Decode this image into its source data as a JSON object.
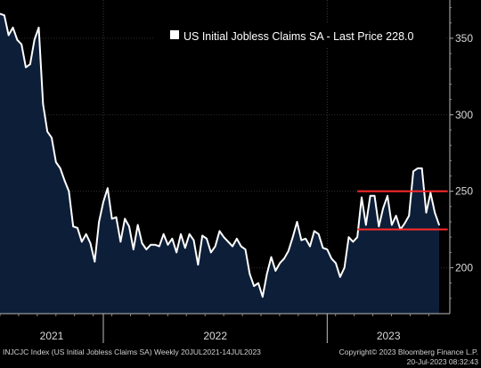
{
  "chart_data": {
    "type": "area",
    "legend": "US Initial Jobless Claims SA - Last Price 228.0",
    "legend_placement": "top-right",
    "ylim": [
      170,
      375
    ],
    "yticks": [
      200,
      250,
      300,
      350
    ],
    "ytick_labels": [
      "200",
      "250",
      "300",
      "350"
    ],
    "years": [
      {
        "label": "2021",
        "start": 0,
        "end": 24
      },
      {
        "label": "2022",
        "start": 24,
        "end": 76
      },
      {
        "label": "2023",
        "start": 76,
        "end": 104
      }
    ],
    "series": [
      {
        "name": "US Initial Jobless Claims SA",
        "color": "#ffffff",
        "fill": "#0d1e38",
        "values": [
          366,
          365,
          352,
          357,
          349,
          346,
          331,
          333,
          349,
          357,
          307,
          289,
          285,
          269,
          265,
          257,
          250,
          227,
          226,
          217,
          222,
          216,
          204,
          230,
          243,
          252,
          232,
          233,
          217,
          232,
          227,
          212,
          228,
          216,
          212,
          215,
          215,
          214,
          222,
          215,
          219,
          210,
          222,
          213,
          222,
          218,
          202,
          221,
          219,
          210,
          214,
          224,
          220,
          217,
          214,
          219,
          214,
          212,
          196,
          188,
          190,
          181,
          196,
          207,
          198,
          203,
          206,
          211,
          220,
          230,
          218,
          219,
          214,
          224,
          222,
          213,
          212,
          206,
          203,
          194,
          200,
          220,
          217,
          220,
          246,
          228,
          247,
          247,
          227,
          239,
          247,
          228,
          234,
          225,
          229,
          234,
          263,
          265,
          265,
          236,
          249,
          236,
          228
        ]
      }
    ],
    "hlines": [
      {
        "y": 250,
        "x_start": 83,
        "x_end": 104,
        "color": "#ff2a2a"
      },
      {
        "y": 225,
        "x_start": 83,
        "x_end": 104,
        "color": "#ff2a2a"
      }
    ],
    "footer_left": "INJCJC Index (US Initial Jobless Claims SA)  Weekly 20JUL2021-14JUL2023",
    "footer_right_1": "Copyright© 2023 Bloomberg Finance L.P.",
    "footer_right_2": "20-Jul-2023 08:32:43"
  }
}
